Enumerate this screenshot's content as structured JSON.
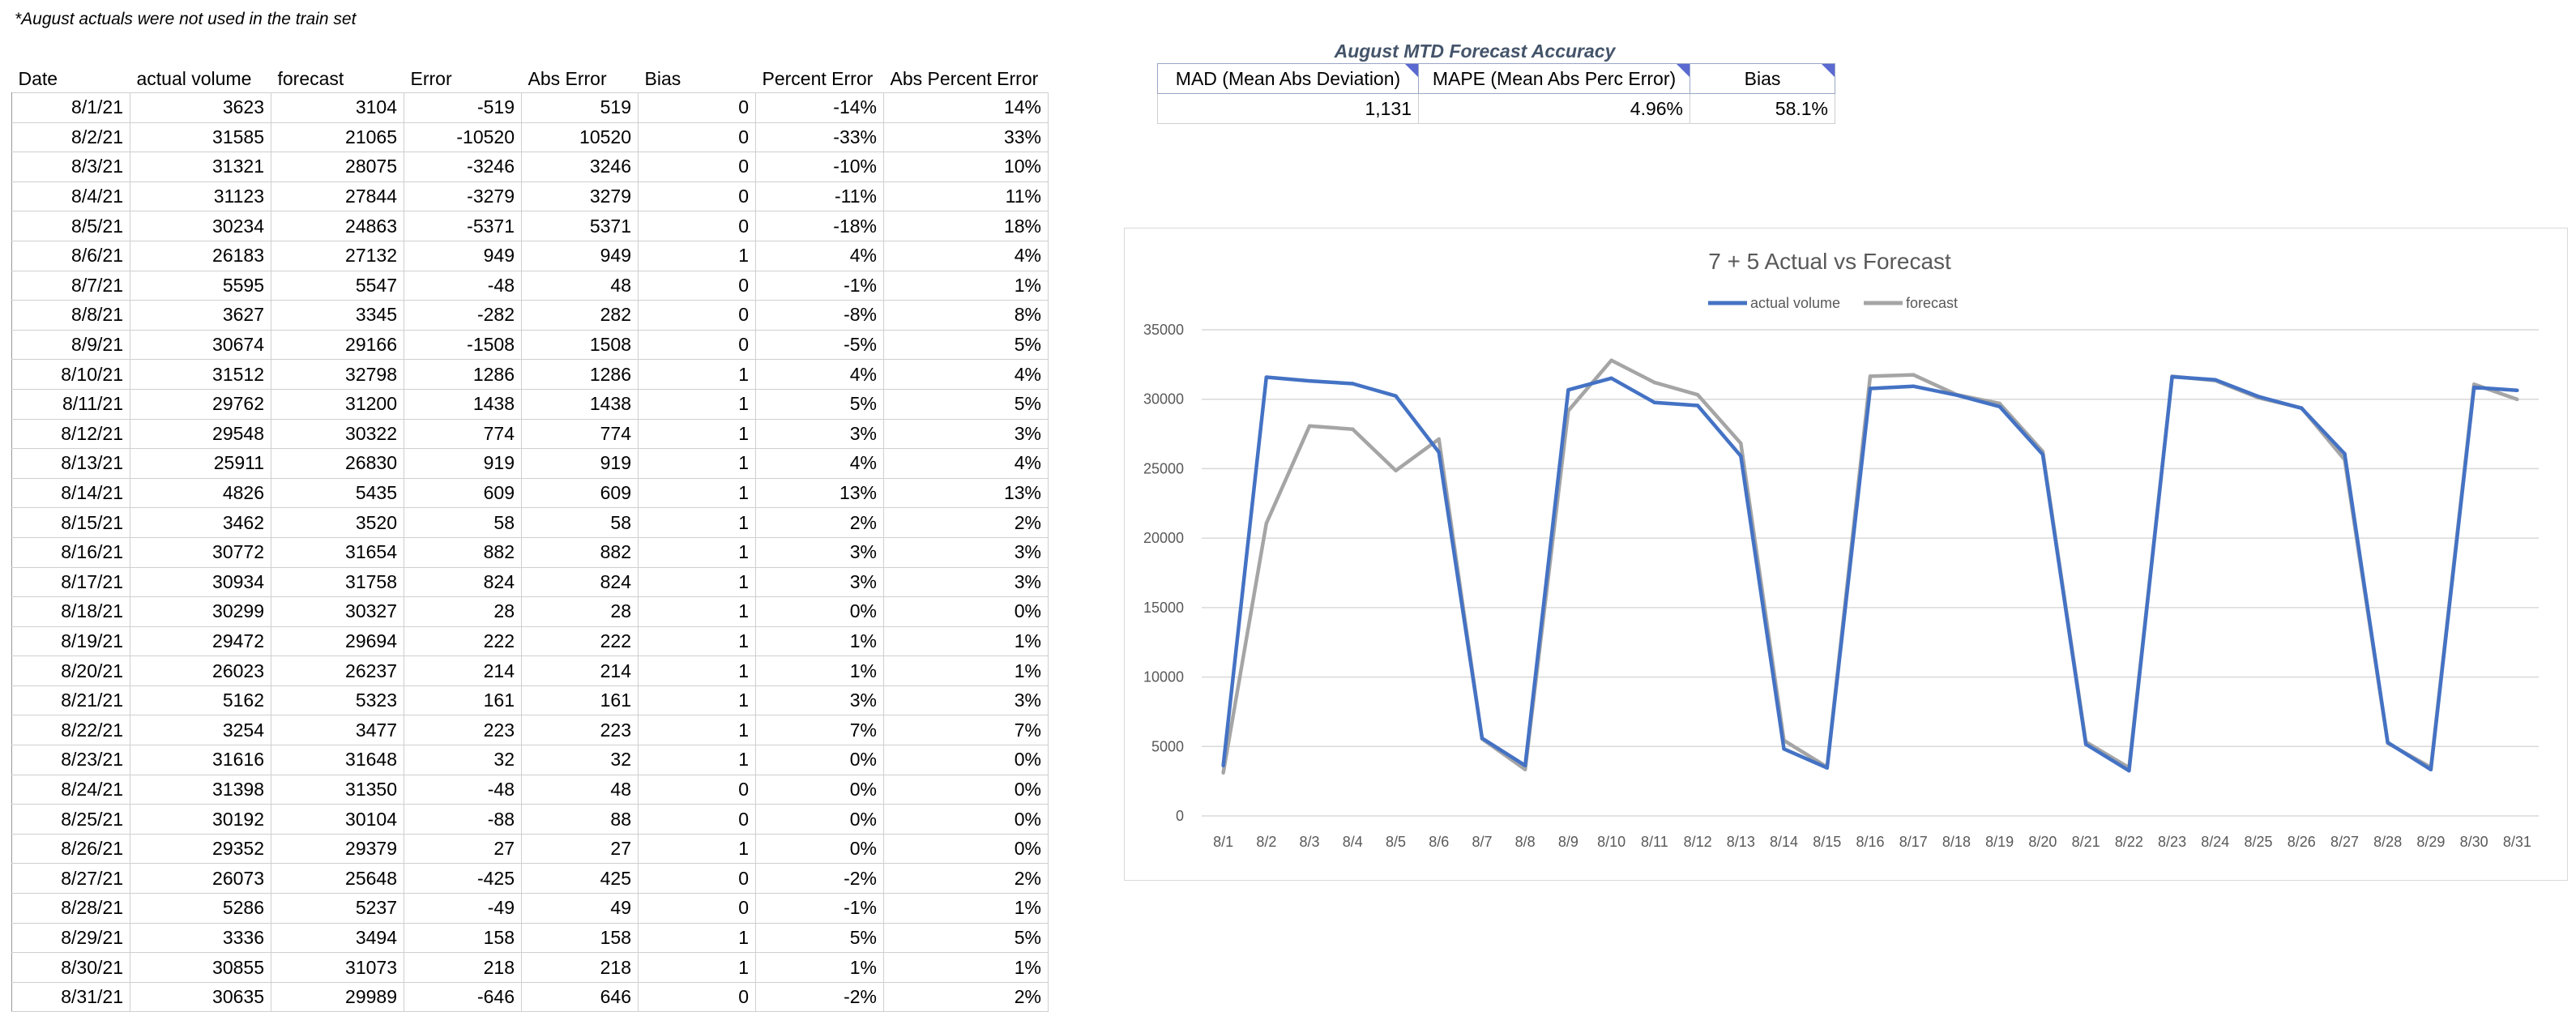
{
  "note": "*August actuals were not used in the train set",
  "table": {
    "headers": [
      "Date",
      "actual volume",
      "forecast",
      "Error",
      "Abs Error",
      "Bias",
      "Percent Error",
      "Abs Percent Error"
    ],
    "rows": [
      [
        "8/1/21",
        "3623",
        "3104",
        "-519",
        "519",
        "0",
        "-14%",
        "14%"
      ],
      [
        "8/2/21",
        "31585",
        "21065",
        "-10520",
        "10520",
        "0",
        "-33%",
        "33%"
      ],
      [
        "8/3/21",
        "31321",
        "28075",
        "-3246",
        "3246",
        "0",
        "-10%",
        "10%"
      ],
      [
        "8/4/21",
        "31123",
        "27844",
        "-3279",
        "3279",
        "0",
        "-11%",
        "11%"
      ],
      [
        "8/5/21",
        "30234",
        "24863",
        "-5371",
        "5371",
        "0",
        "-18%",
        "18%"
      ],
      [
        "8/6/21",
        "26183",
        "27132",
        "949",
        "949",
        "1",
        "4%",
        "4%"
      ],
      [
        "8/7/21",
        "5595",
        "5547",
        "-48",
        "48",
        "0",
        "-1%",
        "1%"
      ],
      [
        "8/8/21",
        "3627",
        "3345",
        "-282",
        "282",
        "0",
        "-8%",
        "8%"
      ],
      [
        "8/9/21",
        "30674",
        "29166",
        "-1508",
        "1508",
        "0",
        "-5%",
        "5%"
      ],
      [
        "8/10/21",
        "31512",
        "32798",
        "1286",
        "1286",
        "1",
        "4%",
        "4%"
      ],
      [
        "8/11/21",
        "29762",
        "31200",
        "1438",
        "1438",
        "1",
        "5%",
        "5%"
      ],
      [
        "8/12/21",
        "29548",
        "30322",
        "774",
        "774",
        "1",
        "3%",
        "3%"
      ],
      [
        "8/13/21",
        "25911",
        "26830",
        "919",
        "919",
        "1",
        "4%",
        "4%"
      ],
      [
        "8/14/21",
        "4826",
        "5435",
        "609",
        "609",
        "1",
        "13%",
        "13%"
      ],
      [
        "8/15/21",
        "3462",
        "3520",
        "58",
        "58",
        "1",
        "2%",
        "2%"
      ],
      [
        "8/16/21",
        "30772",
        "31654",
        "882",
        "882",
        "1",
        "3%",
        "3%"
      ],
      [
        "8/17/21",
        "30934",
        "31758",
        "824",
        "824",
        "1",
        "3%",
        "3%"
      ],
      [
        "8/18/21",
        "30299",
        "30327",
        "28",
        "28",
        "1",
        "0%",
        "0%"
      ],
      [
        "8/19/21",
        "29472",
        "29694",
        "222",
        "222",
        "1",
        "1%",
        "1%"
      ],
      [
        "8/20/21",
        "26023",
        "26237",
        "214",
        "214",
        "1",
        "1%",
        "1%"
      ],
      [
        "8/21/21",
        "5162",
        "5323",
        "161",
        "161",
        "1",
        "3%",
        "3%"
      ],
      [
        "8/22/21",
        "3254",
        "3477",
        "223",
        "223",
        "1",
        "7%",
        "7%"
      ],
      [
        "8/23/21",
        "31616",
        "31648",
        "32",
        "32",
        "1",
        "0%",
        "0%"
      ],
      [
        "8/24/21",
        "31398",
        "31350",
        "-48",
        "48",
        "0",
        "0%",
        "0%"
      ],
      [
        "8/25/21",
        "30192",
        "30104",
        "-88",
        "88",
        "0",
        "0%",
        "0%"
      ],
      [
        "8/26/21",
        "29352",
        "29379",
        "27",
        "27",
        "1",
        "0%",
        "0%"
      ],
      [
        "8/27/21",
        "26073",
        "25648",
        "-425",
        "425",
        "0",
        "-2%",
        "2%"
      ],
      [
        "8/28/21",
        "5286",
        "5237",
        "-49",
        "49",
        "0",
        "-1%",
        "1%"
      ],
      [
        "8/29/21",
        "3336",
        "3494",
        "158",
        "158",
        "1",
        "5%",
        "5%"
      ],
      [
        "8/30/21",
        "30855",
        "31073",
        "218",
        "218",
        "1",
        "1%",
        "1%"
      ],
      [
        "8/31/21",
        "30635",
        "29989",
        "-646",
        "646",
        "0",
        "-2%",
        "2%"
      ]
    ]
  },
  "accuracy": {
    "title": "August MTD Forecast Accuracy",
    "headers": [
      "MAD (Mean Abs Deviation)",
      "MAPE (Mean Abs Perc Error)",
      "Bias"
    ],
    "values": [
      "1,131",
      "4.96%",
      "58.1%"
    ]
  },
  "colors": {
    "actual": "#4472c4",
    "forecast": "#a5a5a5",
    "accuracy_title": "#44546a",
    "comment_flag": "#5b6ad0"
  },
  "chart_data": {
    "type": "line",
    "title": "7 + 5 Actual vs Forecast",
    "categories": [
      "8/1",
      "8/2",
      "8/3",
      "8/4",
      "8/5",
      "8/6",
      "8/7",
      "8/8",
      "8/9",
      "8/10",
      "8/11",
      "8/12",
      "8/13",
      "8/14",
      "8/15",
      "8/16",
      "8/17",
      "8/18",
      "8/19",
      "8/20",
      "8/21",
      "8/22",
      "8/23",
      "8/24",
      "8/25",
      "8/26",
      "8/27",
      "8/28",
      "8/29",
      "8/30",
      "8/31"
    ],
    "series": [
      {
        "name": "actual volume",
        "values": [
          3623,
          31585,
          31321,
          31123,
          30234,
          26183,
          5595,
          3627,
          30674,
          31512,
          29762,
          29548,
          25911,
          4826,
          3462,
          30772,
          30934,
          30299,
          29472,
          26023,
          5162,
          3254,
          31616,
          31398,
          30192,
          29352,
          26073,
          5286,
          3336,
          30855,
          30635
        ]
      },
      {
        "name": "forecast",
        "values": [
          3104,
          21065,
          28075,
          27844,
          24863,
          27132,
          5547,
          3345,
          29166,
          32798,
          31200,
          30322,
          26830,
          5435,
          3520,
          31654,
          31758,
          30327,
          29694,
          26237,
          5323,
          3477,
          31648,
          31350,
          30104,
          29379,
          25648,
          5237,
          3494,
          31073,
          29989
        ]
      }
    ],
    "ylim": [
      0,
      35000
    ],
    "yticks": [
      0,
      5000,
      10000,
      15000,
      20000,
      25000,
      30000,
      35000
    ],
    "legend": "top",
    "grid": true
  }
}
